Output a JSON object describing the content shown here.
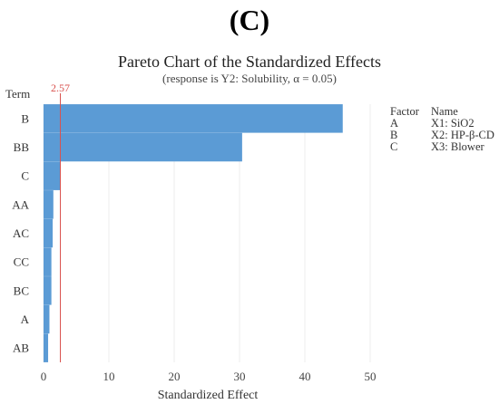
{
  "panel_label": "(C)",
  "legend": {
    "header": {
      "factor": "Factor",
      "name": "Name"
    },
    "rows": [
      {
        "factor": "A",
        "name": "X1: SiO2"
      },
      {
        "factor": "B",
        "name": "X2: HP-β-CD"
      },
      {
        "factor": "C",
        "name": "X3: Blower"
      }
    ]
  },
  "chart_data": {
    "type": "bar",
    "orientation": "horizontal",
    "title": "Pareto Chart of the Standardized Effects",
    "subtitle": "(response is Y2: Solubility, α = 0.05)",
    "xlabel": "Standardized Effect",
    "ylabel": "Term",
    "categories": [
      "B",
      "BB",
      "C",
      "AA",
      "AC",
      "CC",
      "BC",
      "A",
      "AB"
    ],
    "values": [
      45.8,
      30.4,
      2.6,
      1.5,
      1.4,
      1.2,
      1.2,
      0.9,
      0.7
    ],
    "xlim": [
      0,
      50
    ],
    "xticks": [
      0,
      10,
      20,
      30,
      40,
      50
    ],
    "reference_line": {
      "value": 2.57,
      "label": "2.57",
      "color": "#d9534f"
    },
    "bar_color": "#5b9bd5",
    "grid": true
  }
}
